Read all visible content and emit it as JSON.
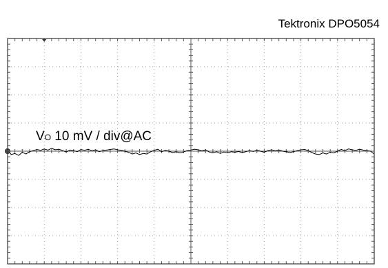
{
  "chart_data": {
    "type": "line",
    "title": "Tektronix DPO5054",
    "grid": true,
    "divisions": {
      "x": 10,
      "y": 8
    },
    "xlim": [
      0,
      10
    ],
    "ylim": [
      -4,
      4
    ],
    "channel_label": {
      "prefix": "V",
      "subscript": "O",
      "suffix": " 10 mV / div@AC"
    },
    "series": [
      {
        "color": "#000000",
        "x": [
          0,
          0.1,
          0.2,
          0.3,
          0.4,
          0.5,
          0.6,
          0.7,
          0.8,
          0.9,
          1.0,
          1.1,
          1.2,
          1.3,
          1.4,
          1.5,
          1.6,
          1.7,
          1.8,
          1.9,
          2.0,
          2.1,
          2.2,
          2.3,
          2.4,
          2.5,
          2.6,
          2.7,
          2.8,
          2.9,
          3.0,
          3.1,
          3.2,
          3.3,
          3.4,
          3.5,
          3.6,
          3.7,
          3.8,
          3.9,
          4.0,
          4.1,
          4.2,
          4.3,
          4.4,
          4.5,
          4.6,
          4.7,
          4.8,
          4.9,
          5.0,
          5.1,
          5.2,
          5.3,
          5.4,
          5.5,
          5.6,
          5.7,
          5.8,
          5.9,
          6.0,
          6.1,
          6.2,
          6.3,
          6.4,
          6.5,
          6.6,
          6.7,
          6.8,
          6.9,
          7.0,
          7.1,
          7.2,
          7.3,
          7.4,
          7.5,
          7.6,
          7.7,
          7.8,
          7.9,
          8.0,
          8.1,
          8.2,
          8.3,
          8.4,
          8.5,
          8.6,
          8.7,
          8.8,
          8.9,
          9.0,
          9.1,
          9.2,
          9.3,
          9.4,
          9.5,
          9.6,
          9.7,
          9.8,
          9.9,
          10.0
        ],
        "y": [
          0.05,
          -0.12,
          -0.08,
          -0.15,
          -0.04,
          -0.1,
          -0.02,
          0.02,
          0.06,
          0.03,
          0.08,
          0.04,
          0.1,
          0.05,
          0.07,
          0.02,
          -0.03,
          0.04,
          0.02,
          -0.02,
          0.06,
          0.03,
          0.07,
          0.01,
          0.05,
          -0.02,
          0.02,
          0.04,
          0.06,
          0.08,
          0.05,
          0.03,
          0.0,
          -0.04,
          -0.1,
          -0.06,
          -0.12,
          -0.08,
          -0.1,
          -0.02,
          0.03,
          0.07,
          -0.02,
          0.03,
          0.0,
          -0.05,
          -0.02,
          -0.06,
          -0.03,
          0.02,
          0.04,
          0.07,
          0.05,
          0.01,
          0.05,
          -0.03,
          -0.06,
          -0.02,
          -0.08,
          -0.03,
          -0.06,
          -0.02,
          -0.04,
          -0.01,
          -0.05,
          -0.02,
          0.02,
          -0.01,
          0.03,
          0.0,
          -0.04,
          0.02,
          0.05,
          0.01,
          0.04,
          0.0,
          -0.02,
          -0.05,
          -0.02,
          0.02,
          0.05,
          0.06,
          0.02,
          -0.05,
          -0.1,
          -0.12,
          -0.06,
          -0.1,
          -0.04,
          -0.06,
          0.0,
          0.06,
          0.02,
          0.08,
          0.05,
          0.03,
          0.07,
          0.04,
          0.02,
          0.0,
          -0.1
        ]
      }
    ],
    "markers": {
      "trigger_x": 1.0,
      "ground_y": 0.0
    }
  }
}
